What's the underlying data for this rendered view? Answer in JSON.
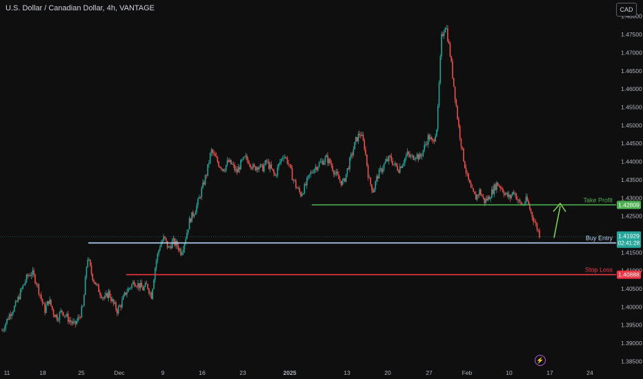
{
  "header": {
    "symbol_title": "U.S. Dollar / Canadian Dollar, 4h, VANTAGE",
    "currency_button": "CAD"
  },
  "chart_data": {
    "type": "candlestick",
    "price_scale": {
      "ylim": [
        1.383,
        1.4845
      ],
      "ticks": [
        "1.48000",
        "1.47500",
        "1.47000",
        "1.46500",
        "1.46000",
        "1.45500",
        "1.45000",
        "1.44500",
        "1.44000",
        "1.43500",
        "1.43000",
        "1.42500",
        "1.41500",
        "1.41000",
        "1.40500",
        "1.40000",
        "1.39500",
        "1.39000",
        "1.38500"
      ]
    },
    "time_axis": {
      "labels": [
        "11",
        "18",
        "25",
        "Dec",
        "9",
        "16",
        "23",
        "2025",
        "13",
        "20",
        "27",
        "Feb",
        "10",
        "17",
        "24"
      ]
    },
    "candles_path": [
      1.3935,
      1.396,
      1.3985,
      1.4,
      1.403,
      1.406,
      1.4085,
      1.4095,
      1.407,
      1.403,
      1.399,
      1.402,
      1.3985,
      1.397,
      1.399,
      1.3975,
      1.396,
      1.395,
      1.397,
      1.4,
      1.414,
      1.409,
      1.406,
      1.404,
      1.402,
      1.404,
      1.401,
      1.399,
      1.401,
      1.404,
      1.4055,
      1.407,
      1.406,
      1.405,
      1.406,
      1.403,
      1.412,
      1.417,
      1.419,
      1.416,
      1.418,
      1.417,
      1.415,
      1.419,
      1.424,
      1.426,
      1.429,
      1.433,
      1.437,
      1.443,
      1.441,
      1.439,
      1.438,
      1.44,
      1.439,
      1.437,
      1.4395,
      1.441,
      1.44,
      1.438,
      1.439,
      1.438,
      1.44,
      1.438,
      1.436,
      1.4395,
      1.442,
      1.44,
      1.436,
      1.433,
      1.431,
      1.433,
      1.436,
      1.438,
      1.439,
      1.44,
      1.441,
      1.4395,
      1.437,
      1.435,
      1.434,
      1.438,
      1.442,
      1.446,
      1.448,
      1.444,
      1.435,
      1.432,
      1.436,
      1.438,
      1.44,
      1.441,
      1.439,
      1.438,
      1.44,
      1.442,
      1.441,
      1.442,
      1.441,
      1.444,
      1.447,
      1.445,
      1.45,
      1.474,
      1.478,
      1.47,
      1.46,
      1.45,
      1.442,
      1.436,
      1.432,
      1.43,
      1.432,
      1.429,
      1.43,
      1.432,
      1.434,
      1.433,
      1.431,
      1.43,
      1.432,
      1.429,
      1.428,
      1.4295,
      1.426,
      1.423,
      1.42
    ],
    "current_price": "1.41929",
    "countdown": "02:41:28",
    "levels": [
      {
        "name": "Take Profit",
        "label": "Take Profit",
        "value": 1.42809,
        "price_label": "1.42809",
        "color": "#4caf50"
      },
      {
        "name": "Buy Entry",
        "label": "Buy Entry",
        "value": 1.41761,
        "price_label": "1.41761",
        "color": "#bbd9fb"
      },
      {
        "name": "Stop Loss",
        "label": "Stop Loss",
        "value": 1.40888,
        "price_label": "1.40888",
        "color": "#f23645"
      }
    ],
    "colors": {
      "background": "#0f0f0f",
      "up": "#26a69a",
      "down": "#ef5350",
      "grid": "#1c1c1c",
      "axis_text": "#b2b5be",
      "arrow": "#7cd04f"
    },
    "grid": false
  }
}
